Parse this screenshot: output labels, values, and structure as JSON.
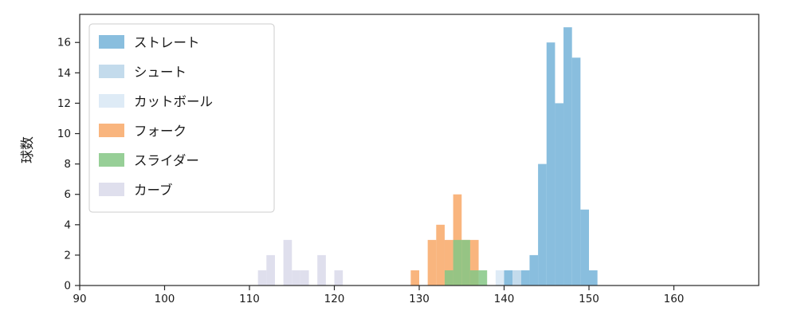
{
  "chart_data": {
    "type": "bar",
    "subtype": "histogram",
    "title": "",
    "xlabel": "",
    "ylabel": "球数",
    "xlim": [
      90,
      170
    ],
    "ylim": [
      0,
      17.85
    ],
    "x_ticks": [
      90,
      100,
      110,
      120,
      130,
      140,
      150,
      160
    ],
    "y_ticks": [
      0,
      2,
      4,
      6,
      8,
      10,
      12,
      14,
      16
    ],
    "bin_width": 1,
    "grid": false,
    "legend_position": "upper left",
    "colors": {
      "frame": "#262626",
      "legend_border": "#cccccc",
      "legend_background": "#ffffff"
    },
    "series": [
      {
        "name": "ストレート",
        "color": "#6baed6",
        "alpha": 0.8,
        "bins": [
          [
            140,
            1
          ],
          [
            142,
            1
          ],
          [
            143,
            2
          ],
          [
            144,
            8
          ],
          [
            145,
            16
          ],
          [
            146,
            12
          ],
          [
            147,
            17
          ],
          [
            148,
            15
          ],
          [
            149,
            5
          ],
          [
            150,
            1
          ]
        ]
      },
      {
        "name": "シュート",
        "color": "#b4d2e7",
        "alpha": 0.8,
        "bins": [
          [
            141,
            1
          ]
        ]
      },
      {
        "name": "カットボール",
        "color": "#d6e6f4",
        "alpha": 0.8,
        "bins": [
          [
            139,
            1
          ]
        ]
      },
      {
        "name": "フォーク",
        "color": "#f8a25e",
        "alpha": 0.8,
        "bins": [
          [
            129,
            1
          ],
          [
            131,
            3
          ],
          [
            132,
            4
          ],
          [
            133,
            3
          ],
          [
            134,
            6
          ],
          [
            135,
            3
          ],
          [
            136,
            3
          ]
        ]
      },
      {
        "name": "スライダー",
        "color": "#85c785",
        "alpha": 0.85,
        "bins": [
          [
            133,
            1
          ],
          [
            134,
            3
          ],
          [
            135,
            3
          ],
          [
            136,
            1
          ],
          [
            137,
            1
          ]
        ]
      },
      {
        "name": "カーブ",
        "color": "#dcdbeb",
        "alpha": 0.9,
        "bins": [
          [
            111,
            1
          ],
          [
            112,
            2
          ],
          [
            114,
            3
          ],
          [
            115,
            1
          ],
          [
            116,
            1
          ],
          [
            118,
            2
          ],
          [
            120,
            1
          ]
        ]
      }
    ]
  }
}
